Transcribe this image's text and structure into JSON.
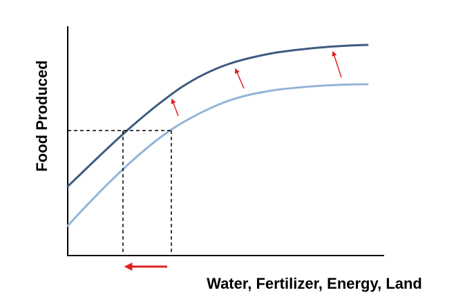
{
  "diagram": {
    "x_axis_label": "Water, Fertilizer, Energy, Land",
    "y_axis_label": "Food Produced",
    "colors": {
      "axes": "#000000",
      "upper_curve": "#3d5a80",
      "lower_curve": "#93b4d8",
      "arrows": "#e02020",
      "guides": "#000000"
    },
    "curves": [
      {
        "name": "upper-curve",
        "meaning": "more food produced per unit of input"
      },
      {
        "name": "lower-curve",
        "meaning": "less food produced per unit of input"
      }
    ],
    "arrows": {
      "curve_shift": "upward shift from lower curve to upper curve",
      "input_reduction": "leftward shift along input axis"
    }
  }
}
